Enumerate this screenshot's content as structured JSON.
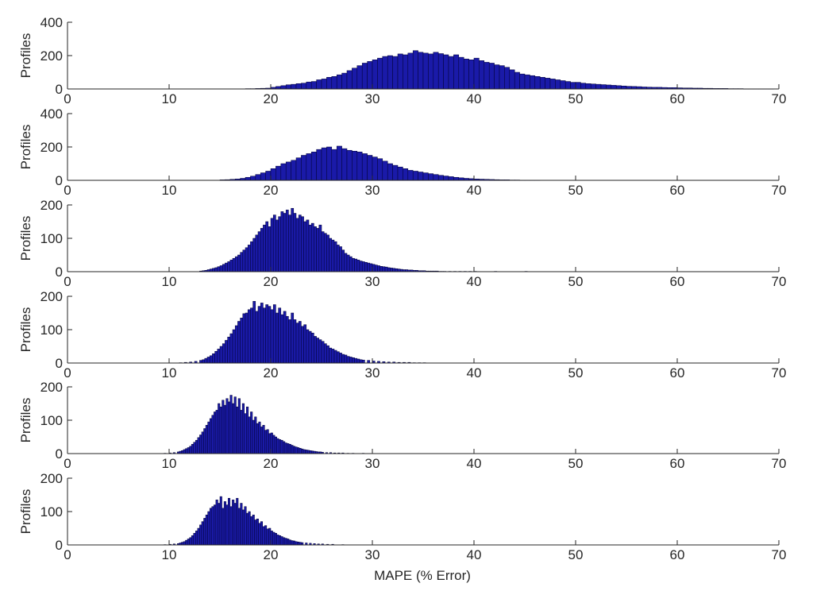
{
  "colors": {
    "bar_fill": "#1a1aa8",
    "bar_stroke": "#000033",
    "axis": "#262626"
  },
  "xlabel": "MAPE (% Error)",
  "chart_data": [
    {
      "type": "bar",
      "ylabel": "Profiles",
      "xlim": [
        0,
        70
      ],
      "ylim": [
        0,
        400
      ],
      "xticks": [
        0,
        10,
        20,
        30,
        40,
        50,
        60,
        70
      ],
      "yticks": [
        0,
        200,
        400
      ],
      "bin_width": 0.5,
      "x": [
        17.5,
        18,
        18.5,
        19,
        19.5,
        20,
        20.5,
        21,
        21.5,
        22,
        22.5,
        23,
        23.5,
        24,
        24.5,
        25,
        25.5,
        26,
        26.5,
        27,
        27.5,
        28,
        28.5,
        29,
        29.5,
        30,
        30.5,
        31,
        31.5,
        32,
        32.5,
        33,
        33.5,
        34,
        34.5,
        35,
        35.5,
        36,
        36.5,
        37,
        37.5,
        38,
        38.5,
        39,
        39.5,
        40,
        40.5,
        41,
        41.5,
        42,
        42.5,
        43,
        43.5,
        44,
        44.5,
        45,
        45.5,
        46,
        46.5,
        47,
        47.5,
        48,
        48.5,
        49,
        49.5,
        50,
        50.5,
        51,
        51.5,
        52,
        52.5,
        53,
        53.5,
        54,
        54.5,
        55,
        55.5,
        56,
        56.5,
        57,
        57.5,
        58,
        58.5,
        59,
        59.5,
        60,
        60.5,
        61,
        61.5,
        62,
        62.5,
        63,
        63.5,
        64,
        64.5,
        65,
        65.5,
        66,
        66.5,
        67,
        67.5,
        68,
        68.5,
        69
      ],
      "values": [
        2,
        2,
        3,
        4,
        5,
        10,
        15,
        20,
        25,
        28,
        32,
        35,
        42,
        45,
        55,
        60,
        70,
        75,
        85,
        95,
        110,
        125,
        140,
        155,
        165,
        175,
        185,
        195,
        200,
        195,
        210,
        205,
        215,
        230,
        220,
        215,
        210,
        220,
        212,
        205,
        195,
        205,
        190,
        180,
        175,
        185,
        170,
        160,
        155,
        145,
        140,
        130,
        115,
        100,
        90,
        85,
        80,
        75,
        70,
        65,
        60,
        55,
        50,
        45,
        40,
        40,
        35,
        32,
        30,
        28,
        26,
        24,
        22,
        20,
        18,
        16,
        15,
        14,
        12,
        11,
        10,
        10,
        9,
        8,
        8,
        7,
        6,
        6,
        5,
        5,
        4,
        4,
        3,
        3,
        3,
        2,
        2,
        2,
        1,
        1,
        1,
        1,
        1,
        1
      ]
    },
    {
      "type": "bar",
      "ylabel": "Profiles",
      "xlim": [
        0,
        70
      ],
      "ylim": [
        0,
        400
      ],
      "xticks": [
        0,
        10,
        20,
        30,
        40,
        50,
        60,
        70
      ],
      "yticks": [
        0,
        200,
        400
      ],
      "bin_width": 0.5,
      "x": [
        15,
        15.5,
        16,
        16.5,
        17,
        17.5,
        18,
        18.5,
        19,
        19.5,
        20,
        20.5,
        21,
        21.5,
        22,
        22.5,
        23,
        23.5,
        24,
        24.5,
        25,
        25.5,
        26,
        26.5,
        27,
        27.5,
        28,
        28.5,
        29,
        29.5,
        30,
        30.5,
        31,
        31.5,
        32,
        32.5,
        33,
        33.5,
        34,
        34.5,
        35,
        35.5,
        36,
        36.5,
        37,
        37.5,
        38,
        38.5,
        39,
        39.5,
        40,
        40.5,
        41,
        41.5,
        42,
        42.5,
        43,
        43.5,
        44,
        44.5,
        45,
        45.5,
        46
      ],
      "values": [
        3,
        4,
        6,
        8,
        12,
        18,
        25,
        35,
        45,
        55,
        70,
        85,
        100,
        110,
        120,
        135,
        150,
        160,
        170,
        185,
        195,
        200,
        185,
        205,
        190,
        180,
        175,
        170,
        160,
        150,
        140,
        130,
        115,
        100,
        90,
        80,
        70,
        60,
        55,
        50,
        45,
        40,
        35,
        30,
        26,
        22,
        18,
        15,
        12,
        10,
        8,
        7,
        6,
        5,
        4,
        3,
        3,
        2,
        2,
        1,
        1,
        1,
        1
      ]
    },
    {
      "type": "bar",
      "ylabel": "Profiles",
      "xlim": [
        0,
        70
      ],
      "ylim": [
        0,
        200
      ],
      "xticks": [
        0,
        10,
        20,
        30,
        40,
        50,
        60,
        70
      ],
      "yticks": [
        0,
        100,
        200
      ],
      "bin_width": 0.25,
      "x": [
        13,
        13.25,
        13.5,
        13.75,
        14,
        14.25,
        14.5,
        14.75,
        15,
        15.25,
        15.5,
        15.75,
        16,
        16.25,
        16.5,
        16.75,
        17,
        17.25,
        17.5,
        17.75,
        18,
        18.25,
        18.5,
        18.75,
        19,
        19.25,
        19.5,
        19.75,
        20,
        20.25,
        20.5,
        20.75,
        21,
        21.25,
        21.5,
        21.75,
        22,
        22.25,
        22.5,
        22.75,
        23,
        23.25,
        23.5,
        23.75,
        24,
        24.25,
        24.5,
        24.75,
        25,
        25.25,
        25.5,
        25.75,
        26,
        26.25,
        26.5,
        26.75,
        27,
        27.25,
        27.5,
        27.75,
        28,
        28.25,
        28.5,
        28.75,
        29,
        29.25,
        29.5,
        29.75,
        30,
        30.25,
        30.5,
        30.75,
        31,
        31.25,
        31.5,
        31.75,
        32,
        32.25,
        32.5,
        32.75,
        33,
        33.25,
        33.5,
        33.75,
        34,
        34.25,
        34.5,
        34.75,
        35,
        35.25,
        35.5,
        35.75,
        36,
        36.25,
        36.5,
        36.75,
        37,
        37.5,
        38,
        38.5,
        39,
        39.5,
        40,
        42,
        45
      ],
      "values": [
        2,
        3,
        4,
        6,
        8,
        10,
        12,
        15,
        18,
        22,
        26,
        30,
        35,
        40,
        45,
        50,
        58,
        65,
        72,
        80,
        90,
        100,
        110,
        120,
        130,
        140,
        150,
        135,
        160,
        170,
        155,
        165,
        180,
        175,
        185,
        170,
        190,
        175,
        160,
        170,
        165,
        150,
        155,
        140,
        145,
        135,
        130,
        140,
        120,
        115,
        110,
        100,
        95,
        90,
        80,
        75,
        65,
        55,
        50,
        45,
        40,
        38,
        35,
        32,
        30,
        28,
        26,
        24,
        22,
        20,
        18,
        16,
        15,
        14,
        12,
        11,
        10,
        9,
        8,
        7,
        6,
        6,
        5,
        5,
        4,
        4,
        3,
        3,
        3,
        2,
        2,
        2,
        2,
        2,
        1,
        1,
        1,
        1,
        1,
        1,
        1,
        1,
        1,
        1,
        1
      ]
    },
    {
      "type": "bar",
      "ylabel": "Profiles",
      "xlim": [
        0,
        70
      ],
      "ylim": [
        0,
        200
      ],
      "xticks": [
        0,
        10,
        20,
        30,
        40,
        50,
        60,
        70
      ],
      "yticks": [
        0,
        100,
        200
      ],
      "bin_width": 0.25,
      "x": [
        11,
        11.5,
        12,
        12.5,
        13,
        13.25,
        13.5,
        13.75,
        14,
        14.25,
        14.5,
        14.75,
        15,
        15.25,
        15.5,
        15.75,
        16,
        16.25,
        16.5,
        16.75,
        17,
        17.25,
        17.5,
        17.75,
        18,
        18.25,
        18.5,
        18.75,
        19,
        19.25,
        19.5,
        19.75,
        20,
        20.25,
        20.5,
        20.75,
        21,
        21.25,
        21.5,
        21.75,
        22,
        22.25,
        22.5,
        22.75,
        23,
        23.25,
        23.5,
        23.75,
        24,
        24.25,
        24.5,
        24.75,
        25,
        25.25,
        25.5,
        25.75,
        26,
        26.25,
        26.5,
        26.75,
        27,
        27.25,
        27.5,
        27.75,
        28,
        28.25,
        28.5,
        28.75,
        29,
        29.5,
        30,
        30.5,
        31,
        31.5,
        32,
        32.5,
        33,
        33.5,
        34,
        34.5,
        35
      ],
      "values": [
        1,
        2,
        3,
        5,
        8,
        10,
        14,
        18,
        22,
        28,
        35,
        42,
        50,
        58,
        68,
        78,
        88,
        100,
        112,
        125,
        135,
        148,
        150,
        160,
        165,
        185,
        155,
        170,
        180,
        165,
        175,
        170,
        160,
        175,
        150,
        165,
        145,
        155,
        140,
        130,
        150,
        130,
        120,
        125,
        110,
        115,
        100,
        95,
        90,
        80,
        75,
        70,
        65,
        58,
        52,
        45,
        42,
        38,
        34,
        30,
        26,
        24,
        20,
        18,
        16,
        14,
        12,
        10,
        9,
        8,
        6,
        5,
        4,
        3,
        3,
        2,
        2,
        2,
        1,
        1,
        1
      ]
    },
    {
      "type": "bar",
      "ylabel": "Profiles",
      "xlim": [
        0,
        70
      ],
      "ylim": [
        0,
        200
      ],
      "xticks": [
        0,
        10,
        20,
        30,
        40,
        50,
        60,
        70
      ],
      "yticks": [
        0,
        100,
        200
      ],
      "bin_width": 0.2,
      "x": [
        9.5,
        10,
        10.4,
        10.8,
        11,
        11.2,
        11.4,
        11.6,
        11.8,
        12,
        12.2,
        12.4,
        12.6,
        12.8,
        13,
        13.2,
        13.4,
        13.6,
        13.8,
        14,
        14.2,
        14.4,
        14.6,
        14.8,
        15,
        15.2,
        15.4,
        15.6,
        15.8,
        16,
        16.2,
        16.4,
        16.6,
        16.8,
        17,
        17.2,
        17.4,
        17.6,
        17.8,
        18,
        18.2,
        18.4,
        18.6,
        18.8,
        19,
        19.2,
        19.4,
        19.6,
        19.8,
        20,
        20.2,
        20.4,
        20.6,
        20.8,
        21,
        21.2,
        21.4,
        21.6,
        21.8,
        22,
        22.2,
        22.4,
        22.6,
        22.8,
        23,
        23.2,
        23.4,
        23.6,
        23.8,
        24,
        24.2,
        24.4,
        24.6,
        24.8,
        25,
        25.4,
        25.8,
        26.2,
        26.6,
        27,
        27.5,
        28,
        29
      ],
      "values": [
        1,
        2,
        3,
        5,
        7,
        9,
        12,
        15,
        18,
        22,
        28,
        34,
        40,
        48,
        56,
        65,
        75,
        85,
        95,
        105,
        115,
        125,
        130,
        150,
        140,
        160,
        145,
        165,
        155,
        175,
        150,
        170,
        140,
        165,
        130,
        150,
        120,
        140,
        110,
        125,
        100,
        110,
        90,
        95,
        80,
        85,
        70,
        72,
        60,
        62,
        55,
        50,
        45,
        42,
        40,
        36,
        32,
        30,
        28,
        25,
        22,
        20,
        18,
        16,
        14,
        12,
        11,
        10,
        9,
        8,
        7,
        6,
        5,
        5,
        4,
        3,
        3,
        2,
        2,
        2,
        1,
        1,
        1
      ]
    },
    {
      "type": "bar",
      "ylabel": "Profiles",
      "xlim": [
        0,
        70
      ],
      "ylim": [
        0,
        200
      ],
      "xticks": [
        0,
        10,
        20,
        30,
        40,
        50,
        60,
        70
      ],
      "yticks": [
        0,
        100,
        200
      ],
      "bin_width": 0.2,
      "x": [
        9.5,
        10,
        10.4,
        10.8,
        11,
        11.2,
        11.4,
        11.6,
        11.8,
        12,
        12.2,
        12.4,
        12.6,
        12.8,
        13,
        13.2,
        13.4,
        13.6,
        13.8,
        14,
        14.2,
        14.4,
        14.6,
        14.8,
        15,
        15.2,
        15.4,
        15.6,
        15.8,
        16,
        16.2,
        16.4,
        16.6,
        16.8,
        17,
        17.2,
        17.4,
        17.6,
        17.8,
        18,
        18.2,
        18.4,
        18.6,
        18.8,
        19,
        19.2,
        19.4,
        19.6,
        19.8,
        20,
        20.2,
        20.4,
        20.6,
        20.8,
        21,
        21.2,
        21.4,
        21.6,
        21.8,
        22,
        22.2,
        22.4,
        22.6,
        22.8,
        23,
        23.4,
        23.8,
        24.2,
        24.6,
        25,
        25.5,
        26,
        27
      ],
      "values": [
        1,
        2,
        3,
        4,
        6,
        8,
        10,
        14,
        18,
        22,
        28,
        35,
        42,
        50,
        60,
        70,
        80,
        90,
        100,
        110,
        115,
        120,
        135,
        125,
        145,
        110,
        130,
        120,
        140,
        115,
        135,
        125,
        140,
        110,
        125,
        105,
        115,
        95,
        100,
        85,
        90,
        75,
        78,
        65,
        70,
        55,
        58,
        48,
        50,
        42,
        38,
        35,
        30,
        28,
        25,
        22,
        20,
        18,
        15,
        13,
        12,
        10,
        9,
        8,
        7,
        6,
        5,
        4,
        3,
        3,
        2,
        2,
        1
      ]
    }
  ]
}
